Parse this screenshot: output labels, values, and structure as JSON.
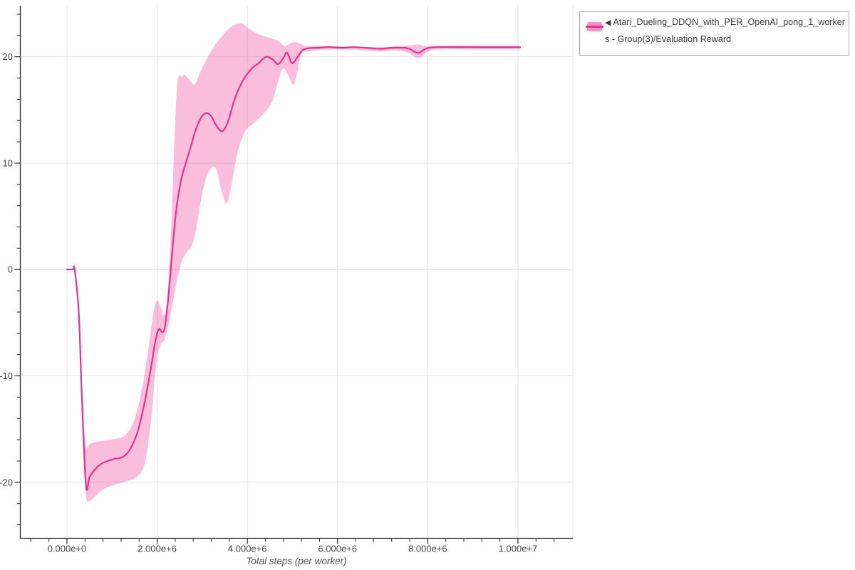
{
  "legend": {
    "collapse_icon": "◀",
    "label_line1": "Atari_Dueling_DDQN_with_PER_OpenAI_pong_1_worker",
    "label_line2": "s - Group(3)/Evaluation Reward",
    "series_full_name": "Atari_Dueling_DDQN_with_PER_OpenAI_pong_1_workers - Group(3)/Evaluation Reward"
  },
  "axes": {
    "x": {
      "title": "Total steps (per worker)",
      "major_tick_values": [
        0,
        2,
        4,
        6,
        8,
        10
      ],
      "major_tick_labels": [
        "0.000e+0",
        "2.000e+6",
        "4.000e+6",
        "6.000e+6",
        "8.000e+6",
        "1.000e+7"
      ],
      "minor_tick_values": [
        -0.8,
        -0.4,
        0.4,
        0.8,
        1.2,
        1.6,
        2.4,
        2.8,
        3.2,
        3.6,
        4.4,
        4.8,
        5.2,
        5.6,
        6.4,
        6.8,
        7.2,
        7.6,
        8.4,
        8.8,
        9.2,
        9.6,
        10.4,
        10.8
      ]
    },
    "y": {
      "major_tick_values": [
        20,
        10,
        0,
        -10,
        -20
      ],
      "major_tick_labels": [
        "20",
        "10",
        "0",
        "-10",
        "-20"
      ],
      "minor_tick_values": [
        24,
        22,
        18,
        16,
        14,
        12,
        8,
        6,
        4,
        2,
        -2,
        -4,
        -6,
        -8,
        -12,
        -14,
        -16,
        -18,
        -22,
        -24
      ]
    }
  },
  "colors": {
    "line": "#e0338c",
    "band": "#ef3d96",
    "band_opacity": "0.34",
    "grid": "#e3e3e3",
    "axis": "#2a2a2a",
    "tick_label": "#444444",
    "legend_swatch_fill": "#f391c7",
    "legend_border": "#a8a8a8",
    "legend_text": "#3a3a3a"
  },
  "chart_data": {
    "type": "line",
    "title": "",
    "xlabel": "Total steps (per worker)",
    "ylabel": "",
    "x_unit": "steps (millions)",
    "x_range_millions": [
      -1.035,
      11.217
    ],
    "y_range": [
      -25.27,
      24.8
    ],
    "grid": true,
    "legend_position": "top-right-outside",
    "series": [
      {
        "name": "Atari_Dueling_DDQN_with_PER_OpenAI_pong_1_workers - Group(3)/Evaluation Reward",
        "points": [
          [
            0.0,
            0
          ],
          [
            0.13,
            0
          ],
          [
            0.17,
            0
          ],
          [
            0.26,
            -4
          ],
          [
            0.33,
            -12
          ],
          [
            0.42,
            -20.3
          ],
          [
            0.5,
            -19.5
          ],
          [
            0.62,
            -18.8
          ],
          [
            0.75,
            -18.3
          ],
          [
            0.9,
            -18.0
          ],
          [
            1.05,
            -17.8
          ],
          [
            1.2,
            -17.7
          ],
          [
            1.33,
            -17.3
          ],
          [
            1.45,
            -16.5
          ],
          [
            1.57,
            -15.2
          ],
          [
            1.68,
            -13.3
          ],
          [
            1.78,
            -11.2
          ],
          [
            1.88,
            -8.8
          ],
          [
            1.96,
            -6.7
          ],
          [
            2.04,
            -5.6
          ],
          [
            2.11,
            -5.9
          ],
          [
            2.17,
            -5.4
          ],
          [
            2.25,
            -2.5
          ],
          [
            2.33,
            1.5
          ],
          [
            2.42,
            5.5
          ],
          [
            2.52,
            8.2
          ],
          [
            2.62,
            9.8
          ],
          [
            2.72,
            11.2
          ],
          [
            2.83,
            12.8
          ],
          [
            2.95,
            14.1
          ],
          [
            3.08,
            14.7
          ],
          [
            3.2,
            14.4
          ],
          [
            3.33,
            13.4
          ],
          [
            3.45,
            13.0
          ],
          [
            3.57,
            13.9
          ],
          [
            3.7,
            15.8
          ],
          [
            3.82,
            17.1
          ],
          [
            3.95,
            18.1
          ],
          [
            4.1,
            18.9
          ],
          [
            4.25,
            19.4
          ],
          [
            4.42,
            20.0
          ],
          [
            4.57,
            19.7
          ],
          [
            4.68,
            19.3
          ],
          [
            4.8,
            19.9
          ],
          [
            4.88,
            20.4
          ],
          [
            4.99,
            19.4
          ],
          [
            5.1,
            19.9
          ],
          [
            5.22,
            20.6
          ],
          [
            5.35,
            20.8
          ],
          [
            5.6,
            20.85
          ],
          [
            5.8,
            20.9
          ],
          [
            6.1,
            20.85
          ],
          [
            6.4,
            20.9
          ],
          [
            6.95,
            20.75
          ],
          [
            7.2,
            20.85
          ],
          [
            7.55,
            20.8
          ],
          [
            7.78,
            20.35
          ],
          [
            7.95,
            20.75
          ],
          [
            8.2,
            20.9
          ],
          [
            9.0,
            20.9
          ],
          [
            9.6,
            20.9
          ],
          [
            10.05,
            20.9
          ]
        ],
        "band_upper": [
          [
            0.35,
            -13
          ],
          [
            0.42,
            -16.6
          ],
          [
            0.5,
            -16.4
          ],
          [
            0.65,
            -16.2
          ],
          [
            0.8,
            -16.1
          ],
          [
            0.95,
            -16.0
          ],
          [
            1.1,
            -15.9
          ],
          [
            1.25,
            -15.7
          ],
          [
            1.4,
            -15.0
          ],
          [
            1.52,
            -13.8
          ],
          [
            1.65,
            -11.5
          ],
          [
            1.75,
            -9.0
          ],
          [
            1.85,
            -6.0
          ],
          [
            1.93,
            -3.8
          ],
          [
            2.0,
            -2.9
          ],
          [
            2.08,
            -3.6
          ],
          [
            2.15,
            -4.3
          ],
          [
            2.21,
            -3.5
          ],
          [
            2.27,
            0.5
          ],
          [
            2.33,
            6.0
          ],
          [
            2.4,
            14.0
          ],
          [
            2.46,
            17.9
          ],
          [
            2.55,
            18.1
          ],
          [
            2.6,
            18.3
          ],
          [
            2.7,
            17.9
          ],
          [
            2.83,
            17.4
          ],
          [
            2.95,
            18.5
          ],
          [
            3.1,
            19.8
          ],
          [
            3.25,
            20.9
          ],
          [
            3.45,
            22.0
          ],
          [
            3.6,
            22.7
          ],
          [
            3.75,
            23.05
          ],
          [
            3.89,
            23.1
          ],
          [
            4.05,
            22.6
          ],
          [
            4.2,
            22.2
          ],
          [
            4.4,
            21.9
          ],
          [
            4.55,
            21.7
          ],
          [
            4.68,
            21.5
          ],
          [
            4.83,
            21.0
          ],
          [
            5.02,
            21.4
          ],
          [
            5.18,
            21.2
          ],
          [
            5.31,
            21.0
          ],
          [
            5.6,
            21.05
          ],
          [
            6.0,
            21.0
          ],
          [
            6.4,
            20.95
          ],
          [
            6.95,
            20.9
          ],
          [
            7.4,
            21.0
          ],
          [
            7.65,
            21.1
          ],
          [
            7.8,
            21.15
          ],
          [
            7.95,
            21.0
          ],
          [
            8.2,
            21.05
          ],
          [
            9.0,
            21.05
          ],
          [
            10.05,
            21.05
          ]
        ],
        "band_lower": [
          [
            0.35,
            -15
          ],
          [
            0.42,
            -21.2
          ],
          [
            0.52,
            -21.7
          ],
          [
            0.65,
            -21.2
          ],
          [
            0.8,
            -20.7
          ],
          [
            0.95,
            -20.4
          ],
          [
            1.1,
            -20.2
          ],
          [
            1.25,
            -20.0
          ],
          [
            1.4,
            -19.8
          ],
          [
            1.55,
            -19.5
          ],
          [
            1.68,
            -18.8
          ],
          [
            1.78,
            -17.0
          ],
          [
            1.88,
            -13.5
          ],
          [
            1.95,
            -10.0
          ],
          [
            2.02,
            -7.8
          ],
          [
            2.1,
            -6.9
          ],
          [
            2.16,
            -6.6
          ],
          [
            2.25,
            -5.2
          ],
          [
            2.35,
            -3.0
          ],
          [
            2.45,
            -0.8
          ],
          [
            2.55,
            0.8
          ],
          [
            2.65,
            1.6
          ],
          [
            2.75,
            2.1
          ],
          [
            2.85,
            3.5
          ],
          [
            2.95,
            6.0
          ],
          [
            3.1,
            8.8
          ],
          [
            3.29,
            9.6
          ],
          [
            3.42,
            7.5
          ],
          [
            3.54,
            6.2
          ],
          [
            3.65,
            8.0
          ],
          [
            3.78,
            11.0
          ],
          [
            3.95,
            13.0
          ],
          [
            4.15,
            13.8
          ],
          [
            4.35,
            14.6
          ],
          [
            4.55,
            15.8
          ],
          [
            4.7,
            18.0
          ],
          [
            4.8,
            18.9
          ],
          [
            4.9,
            18.3
          ],
          [
            5.02,
            17.4
          ],
          [
            5.12,
            18.8
          ],
          [
            5.2,
            20.3
          ],
          [
            5.35,
            20.5
          ],
          [
            5.6,
            20.65
          ],
          [
            6.0,
            20.7
          ],
          [
            6.5,
            20.65
          ],
          [
            6.95,
            20.5
          ],
          [
            7.3,
            20.6
          ],
          [
            7.55,
            20.4
          ],
          [
            7.8,
            19.9
          ],
          [
            8.0,
            20.5
          ],
          [
            8.3,
            20.7
          ],
          [
            9.0,
            20.7
          ],
          [
            10.05,
            20.7
          ]
        ]
      }
    ]
  }
}
